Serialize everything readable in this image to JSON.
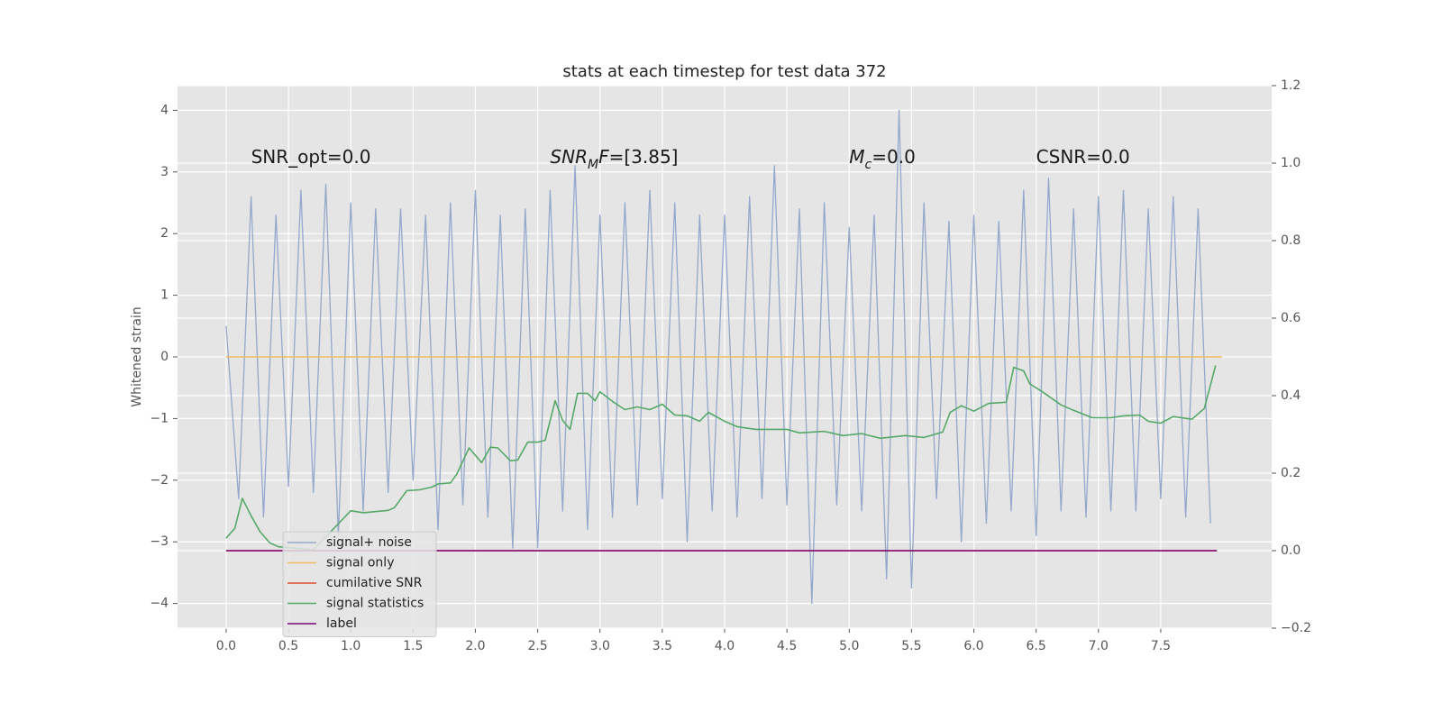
{
  "chart_data": {
    "type": "line",
    "title": "stats at each timestep for test data 372",
    "ylabel": "Whitened strain",
    "xlim": [
      -0.39,
      8.39
    ],
    "ylim": [
      -4.4,
      4.4
    ],
    "y2lim": [
      -0.2,
      1.2
    ],
    "xticks": [
      {
        "value": 0,
        "label": "0.0"
      },
      {
        "value": 0.5,
        "label": "0.5"
      },
      {
        "value": 1,
        "label": "1.0"
      },
      {
        "value": 1.5,
        "label": "1.5"
      },
      {
        "value": 2,
        "label": "2.0"
      },
      {
        "value": 2.5,
        "label": "2.5"
      },
      {
        "value": 3,
        "label": "3.0"
      },
      {
        "value": 3.5,
        "label": "3.5"
      },
      {
        "value": 4,
        "label": "4.0"
      },
      {
        "value": 4.5,
        "label": "4.5"
      },
      {
        "value": 5,
        "label": "5.0"
      },
      {
        "value": 5.5,
        "label": "5.5"
      },
      {
        "value": 6,
        "label": "6.0"
      },
      {
        "value": 6.5,
        "label": "6.5"
      },
      {
        "value": 7,
        "label": "7.0"
      },
      {
        "value": 7.5,
        "label": "7.5"
      }
    ],
    "yticks": [
      {
        "value": -4,
        "label": "−4"
      },
      {
        "value": -3,
        "label": "−3"
      },
      {
        "value": -2,
        "label": "−2"
      },
      {
        "value": -1,
        "label": "−1"
      },
      0,
      1,
      2,
      3,
      4
    ],
    "y2ticks": [
      {
        "value": -0.2,
        "label": "−0.2"
      },
      {
        "value": 0,
        "label": "0.0"
      },
      {
        "value": 0.2,
        "label": "0.2"
      },
      {
        "value": 0.4,
        "label": "0.4"
      },
      {
        "value": 0.6,
        "label": "0.6"
      },
      {
        "value": 0.8,
        "label": "0.8"
      },
      {
        "value": 1,
        "label": "1.0"
      },
      {
        "value": 1.2,
        "label": "1.2"
      }
    ],
    "grid": true,
    "legend": "lower left",
    "annotations": [
      {
        "text": "SNR_opt=0.0"
      },
      {
        "italic": "SNR",
        "sub": "M",
        "italic2": "F",
        "text": "=[3.85]"
      },
      {
        "italic": "M",
        "sub": "c",
        "text": "=0.0"
      },
      {
        "text": "CSNR=0.0"
      }
    ],
    "series": [
      {
        "name": "signal+ noise",
        "color": "#94a8cb",
        "axis": "y",
        "x": [
          0.0,
          0.1,
          0.2,
          0.3,
          0.4,
          0.5,
          0.6,
          0.7,
          0.8,
          0.9,
          1.0,
          1.1,
          1.2,
          1.3,
          1.4,
          1.5,
          1.6,
          1.7,
          1.8,
          1.9,
          2.0,
          2.1,
          2.2,
          2.3,
          2.4,
          2.5,
          2.6,
          2.7,
          2.8,
          2.9,
          3.0,
          3.1,
          3.2,
          3.3,
          3.4,
          3.5,
          3.6,
          3.7,
          3.8,
          3.9,
          4.0,
          4.1,
          4.2,
          4.3,
          4.4,
          4.5,
          4.6,
          4.7,
          4.8,
          4.9,
          5.0,
          5.1,
          5.2,
          5.3,
          5.4,
          5.5,
          5.6,
          5.7,
          5.8,
          5.9,
          6.0,
          6.1,
          6.2,
          6.3,
          6.4,
          6.5,
          6.6,
          6.7,
          6.8,
          6.9,
          7.0,
          7.1,
          7.2,
          7.3,
          7.4,
          7.5,
          7.6,
          7.7,
          7.8,
          7.9
        ],
        "values": [
          0.5,
          -2.3,
          2.6,
          -2.6,
          2.3,
          -2.1,
          2.7,
          -2.2,
          2.8,
          -2.9,
          2.5,
          -2.5,
          2.4,
          -2.2,
          2.4,
          -2.0,
          2.3,
          -2.8,
          2.5,
          -2.4,
          2.7,
          -2.6,
          2.3,
          -3.1,
          2.4,
          -3.1,
          2.7,
          -2.5,
          3.1,
          -2.8,
          2.3,
          -2.6,
          2.5,
          -2.4,
          2.7,
          -2.3,
          2.5,
          -3.0,
          2.3,
          -2.5,
          2.3,
          -2.6,
          2.6,
          -2.3,
          3.1,
          -2.4,
          2.4,
          -4.0,
          2.5,
          -2.4,
          2.1,
          -2.5,
          2.3,
          -3.6,
          4.0,
          -3.75,
          2.5,
          -2.3,
          2.2,
          -3.0,
          2.3,
          -2.7,
          2.2,
          -2.5,
          2.7,
          -2.9,
          2.9,
          -2.5,
          2.4,
          -2.6,
          2.6,
          -2.5,
          2.7,
          -2.5,
          2.4,
          -2.3,
          2.6,
          -2.6,
          2.4,
          -2.7
        ]
      },
      {
        "name": "signal only",
        "color": "#f0bc60",
        "axis": "y",
        "x": [
          0.0,
          7.99
        ],
        "values": [
          0,
          0
        ]
      },
      {
        "name": "cumilative SNR",
        "color": "#e24a33",
        "axis": "y2",
        "x": [
          0.0,
          7.95
        ],
        "values": [
          0,
          0
        ]
      },
      {
        "name": "signal statistics",
        "color": "#55a868",
        "axis": "y2",
        "x": [
          0.0,
          0.07,
          0.13,
          0.2,
          0.27,
          0.35,
          0.42,
          0.5,
          0.7,
          1.0,
          1.1,
          1.3,
          1.35,
          1.45,
          1.55,
          1.65,
          1.7,
          1.8,
          1.85,
          1.95,
          2.05,
          2.12,
          2.18,
          2.28,
          2.34,
          2.42,
          2.5,
          2.56,
          2.64,
          2.7,
          2.76,
          2.82,
          2.9,
          2.96,
          3.0,
          3.1,
          3.2,
          3.3,
          3.4,
          3.5,
          3.6,
          3.7,
          3.8,
          3.87,
          4.0,
          4.1,
          4.25,
          4.5,
          4.6,
          4.8,
          4.95,
          5.1,
          5.25,
          5.45,
          5.6,
          5.75,
          5.81,
          5.9,
          6.0,
          6.12,
          6.26,
          6.32,
          6.4,
          6.45,
          6.55,
          6.7,
          6.8,
          6.95,
          7.1,
          7.2,
          7.33,
          7.4,
          7.5,
          7.6,
          7.75,
          7.85,
          7.94
        ],
        "values": [
          0.032,
          0.058,
          0.135,
          0.09,
          0.05,
          0.02,
          0.01,
          0.008,
          0.002,
          0.103,
          0.098,
          0.104,
          0.111,
          0.155,
          0.157,
          0.164,
          0.172,
          0.175,
          0.197,
          0.265,
          0.227,
          0.267,
          0.265,
          0.232,
          0.234,
          0.28,
          0.28,
          0.285,
          0.387,
          0.336,
          0.313,
          0.406,
          0.406,
          0.387,
          0.41,
          0.385,
          0.364,
          0.371,
          0.364,
          0.378,
          0.35,
          0.348,
          0.334,
          0.357,
          0.334,
          0.32,
          0.313,
          0.313,
          0.304,
          0.308,
          0.297,
          0.302,
          0.29,
          0.297,
          0.292,
          0.306,
          0.357,
          0.374,
          0.36,
          0.38,
          0.383,
          0.473,
          0.464,
          0.43,
          0.41,
          0.376,
          0.362,
          0.343,
          0.343,
          0.348,
          0.35,
          0.334,
          0.329,
          0.346,
          0.339,
          0.367,
          0.478
        ]
      },
      {
        "name": "label",
        "color": "#7a0a7a",
        "axis": "y2",
        "x": [
          0.0,
          7.95
        ],
        "values": [
          0,
          0
        ]
      }
    ]
  }
}
